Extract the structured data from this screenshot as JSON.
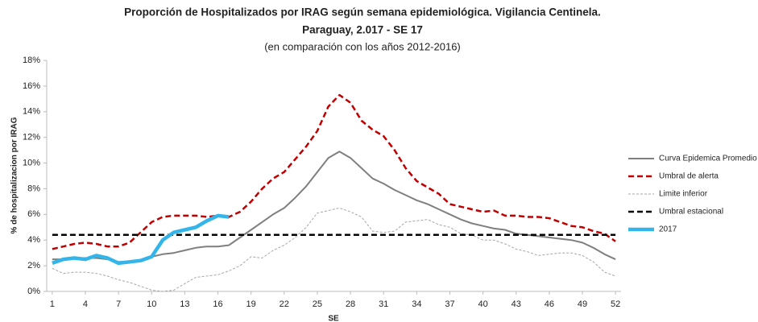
{
  "chart_data": {
    "type": "line",
    "title": "Proporción de Hospitalizados por IRAG según semana epidemiológica. Vigilancia Centinela.",
    "title2": "Paraguay,  2.017 - SE 17",
    "subtitle": "(en comparación con los años 2012-2016)",
    "x_label": "SE",
    "y_label": "% de hospitalizacion por IRAG",
    "x": [
      1,
      2,
      3,
      4,
      5,
      6,
      7,
      8,
      9,
      10,
      11,
      12,
      13,
      14,
      15,
      16,
      17,
      18,
      19,
      20,
      21,
      22,
      23,
      24,
      25,
      26,
      27,
      28,
      29,
      30,
      31,
      32,
      33,
      34,
      35,
      36,
      37,
      38,
      39,
      40,
      41,
      42,
      43,
      44,
      45,
      46,
      47,
      48,
      49,
      50,
      51,
      52
    ],
    "xlim": [
      0.5,
      52.5
    ],
    "xticks": [
      1,
      4,
      7,
      10,
      13,
      16,
      19,
      22,
      25,
      28,
      31,
      34,
      37,
      40,
      43,
      46,
      49,
      52
    ],
    "ylim": [
      0,
      18
    ],
    "yticks": [
      {
        "value": 0,
        "label": "0%"
      },
      {
        "value": 2,
        "label": "2%"
      },
      {
        "value": 4,
        "label": "4%"
      },
      {
        "value": 6,
        "label": "6%"
      },
      {
        "value": 8,
        "label": "8%"
      },
      {
        "value": 10,
        "label": "10%"
      },
      {
        "value": 12,
        "label": "12%"
      },
      {
        "value": 14,
        "label": "14%"
      },
      {
        "value": 16,
        "label": "16%"
      },
      {
        "value": 18,
        "label": "18%"
      }
    ],
    "grid": false,
    "legend": "right",
    "series": [
      {
        "name": "Curva Epidemica Promedio",
        "color": "#7f7f7f",
        "style": "solid",
        "values": [
          2.5,
          2.5,
          2.6,
          2.6,
          2.6,
          2.5,
          2.3,
          2.3,
          2.4,
          2.7,
          2.9,
          3.0,
          3.2,
          3.4,
          3.5,
          3.5,
          3.6,
          4.2,
          4.8,
          5.4,
          6.0,
          6.5,
          7.3,
          8.2,
          9.3,
          10.4,
          10.9,
          10.4,
          9.6,
          8.8,
          8.4,
          7.9,
          7.5,
          7.1,
          6.8,
          6.4,
          6.0,
          5.6,
          5.3,
          5.1,
          4.9,
          4.8,
          4.5,
          4.4,
          4.3,
          4.2,
          4.1,
          4.0,
          3.8,
          3.4,
          2.9,
          2.5
        ]
      },
      {
        "name": "Umbral de alerta",
        "color": "#c00000",
        "style": "dashed",
        "values": [
          3.3,
          3.5,
          3.7,
          3.8,
          3.7,
          3.5,
          3.5,
          3.8,
          4.6,
          5.4,
          5.8,
          5.9,
          5.9,
          5.9,
          5.8,
          5.9,
          5.8,
          6.2,
          7.0,
          8.0,
          8.8,
          9.3,
          10.3,
          11.3,
          12.5,
          14.4,
          15.3,
          14.7,
          13.3,
          12.6,
          12.1,
          11.0,
          9.6,
          8.6,
          8.1,
          7.6,
          6.8,
          6.6,
          6.4,
          6.2,
          6.3,
          5.9,
          5.9,
          5.8,
          5.8,
          5.7,
          5.4,
          5.1,
          5.0,
          4.7,
          4.5,
          3.9
        ]
      },
      {
        "name": "Limite inferior",
        "color": "#a6a6a6",
        "style": "dotted",
        "values": [
          1.8,
          1.4,
          1.5,
          1.5,
          1.4,
          1.2,
          0.9,
          0.7,
          0.4,
          0.1,
          0.0,
          0.1,
          0.6,
          1.1,
          1.2,
          1.3,
          1.6,
          2.0,
          2.7,
          2.6,
          3.2,
          3.6,
          4.2,
          5.0,
          6.1,
          6.3,
          6.5,
          6.2,
          5.8,
          4.7,
          4.6,
          4.7,
          5.4,
          5.5,
          5.6,
          5.2,
          5.0,
          4.5,
          4.4,
          4.0,
          4.0,
          3.7,
          3.3,
          3.1,
          2.8,
          2.9,
          3.0,
          3.0,
          2.8,
          2.3,
          1.5,
          1.2
        ]
      },
      {
        "name": "Umbral estacional",
        "color": "#000000",
        "style": "dashed",
        "values": [
          4.4,
          4.4,
          4.4,
          4.4,
          4.4,
          4.4,
          4.4,
          4.4,
          4.4,
          4.4,
          4.4,
          4.4,
          4.4,
          4.4,
          4.4,
          4.4,
          4.4,
          4.4,
          4.4,
          4.4,
          4.4,
          4.4,
          4.4,
          4.4,
          4.4,
          4.4,
          4.4,
          4.4,
          4.4,
          4.4,
          4.4,
          4.4,
          4.4,
          4.4,
          4.4,
          4.4,
          4.4,
          4.4,
          4.4,
          4.4,
          4.4,
          4.4,
          4.4,
          4.4,
          4.4,
          4.4,
          4.4,
          4.4,
          4.4,
          4.4,
          4.4,
          4.4
        ]
      },
      {
        "name": "2017",
        "color": "#33b5ea",
        "style": "thick",
        "values": [
          2.2,
          2.5,
          2.6,
          2.5,
          2.8,
          2.6,
          2.2,
          2.3,
          2.4,
          2.7,
          4.0,
          4.6,
          4.8,
          5.0,
          5.5,
          5.9,
          5.8,
          null,
          null,
          null,
          null,
          null,
          null,
          null,
          null,
          null,
          null,
          null,
          null,
          null,
          null,
          null,
          null,
          null,
          null,
          null,
          null,
          null,
          null,
          null,
          null,
          null,
          null,
          null,
          null,
          null,
          null,
          null,
          null,
          null,
          null,
          null
        ]
      }
    ]
  }
}
